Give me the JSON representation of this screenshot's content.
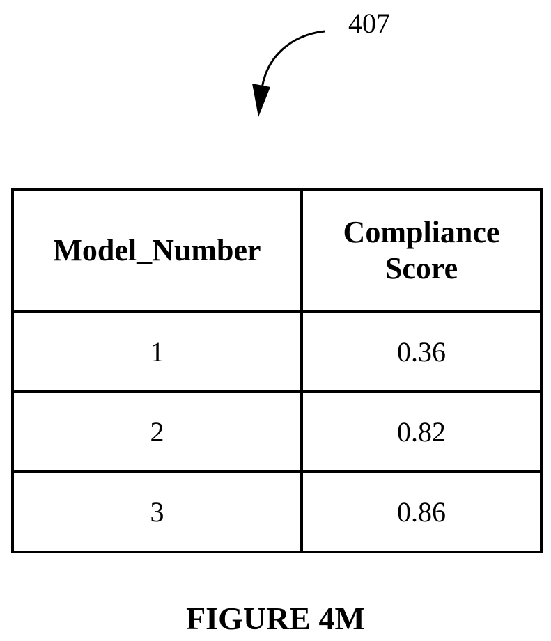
{
  "reference_label": "407",
  "table": {
    "headers": [
      "Model_Number",
      "Compliance Score"
    ],
    "rows": [
      [
        "1",
        "0.36"
      ],
      [
        "2",
        "0.82"
      ],
      [
        "3",
        "0.86"
      ]
    ]
  },
  "caption": "FIGURE 4M"
}
